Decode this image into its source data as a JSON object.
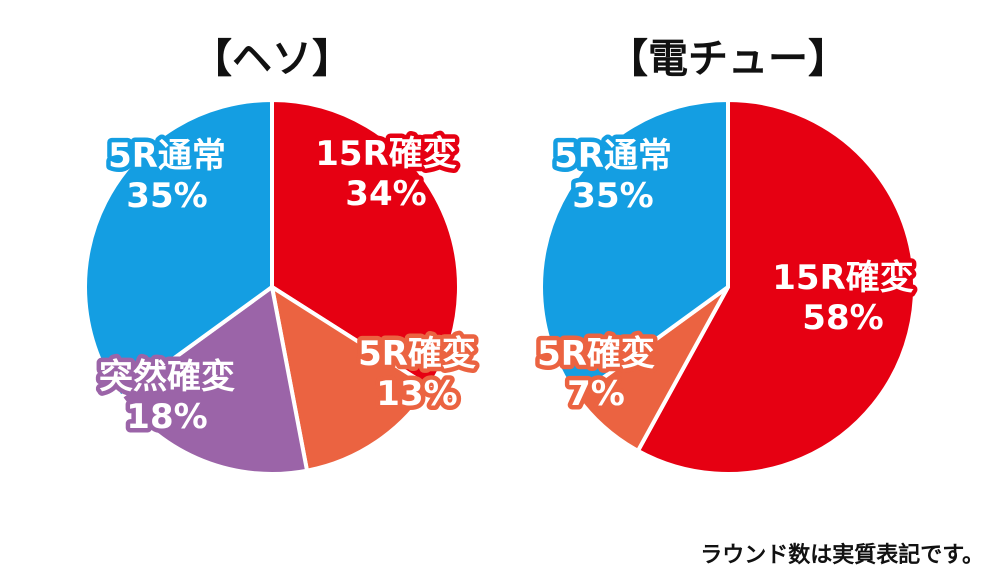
{
  "chart_data": [
    {
      "type": "pie",
      "title": "【ヘソ】",
      "slices": [
        {
          "label": "15R確変",
          "percent_label": "34%",
          "value": 34,
          "color": "#e60012"
        },
        {
          "label": "5R確変",
          "percent_label": "13%",
          "value": 13,
          "color": "#eb6341"
        },
        {
          "label": "突然確変",
          "percent_label": "18%",
          "value": 18,
          "color": "#9b64a8"
        },
        {
          "label": "5R通常",
          "percent_label": "35%",
          "value": 35,
          "color": "#149ee2"
        }
      ]
    },
    {
      "type": "pie",
      "title": "【電チュー】",
      "slices": [
        {
          "label": "15R確変",
          "percent_label": "58%",
          "value": 58,
          "color": "#e60012"
        },
        {
          "label": "5R確変",
          "percent_label": "7%",
          "value": 7,
          "color": "#eb6341"
        },
        {
          "label": "5R通常",
          "percent_label": "35%",
          "value": 35,
          "color": "#149ee2"
        }
      ]
    }
  ],
  "footnote": "ラウンド数は実質表記です。"
}
